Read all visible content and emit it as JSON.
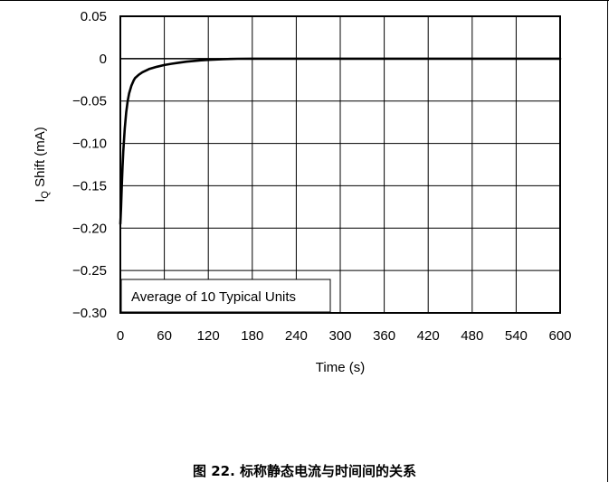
{
  "chart_data": {
    "type": "line",
    "title": "",
    "xlabel": "Time (s)",
    "ylabel_main": "I",
    "ylabel_sub": "Q",
    "ylabel_rest": " Shift (mA)",
    "xlim": [
      0,
      600
    ],
    "ylim": [
      -0.3,
      0.05
    ],
    "x_ticks": [
      0,
      60,
      120,
      180,
      240,
      300,
      360,
      420,
      480,
      540,
      600
    ],
    "x_tick_labels": [
      "0",
      "60",
      "120",
      "180",
      "240",
      "300",
      "360",
      "420",
      "480",
      "540",
      "600"
    ],
    "y_ticks": [
      0.05,
      0,
      -0.05,
      -0.1,
      -0.15,
      -0.2,
      -0.25,
      -0.3
    ],
    "y_tick_labels": [
      "0.05",
      "0",
      "−0.05",
      "−0.10",
      "−0.15",
      "−0.20",
      "−0.25",
      "−0.30"
    ],
    "grid": true,
    "annotation": "Average of 10 Typical Units",
    "series": [
      {
        "x": [
          0,
          1,
          2,
          3,
          4,
          5,
          6,
          8,
          10,
          12,
          15,
          18,
          20,
          25,
          30,
          40,
          50,
          60,
          70,
          80,
          90,
          100,
          110,
          120,
          130,
          140,
          150,
          160,
          180,
          200,
          240,
          300,
          360,
          420,
          480,
          540,
          600
        ],
        "y": [
          -0.195,
          -0.175,
          -0.15,
          -0.128,
          -0.11,
          -0.095,
          -0.082,
          -0.063,
          -0.05,
          -0.041,
          -0.032,
          -0.026,
          -0.023,
          -0.019,
          -0.016,
          -0.012,
          -0.0095,
          -0.0075,
          -0.006,
          -0.0047,
          -0.0036,
          -0.0027,
          -0.002,
          -0.0014,
          -0.001,
          -0.0007,
          -0.0004,
          -0.0002,
          0,
          0,
          0,
          0,
          0,
          0,
          0,
          0,
          0
        ],
        "color": "#000000"
      }
    ]
  },
  "caption": "图 22. 标称静态电流与时间间的关系"
}
